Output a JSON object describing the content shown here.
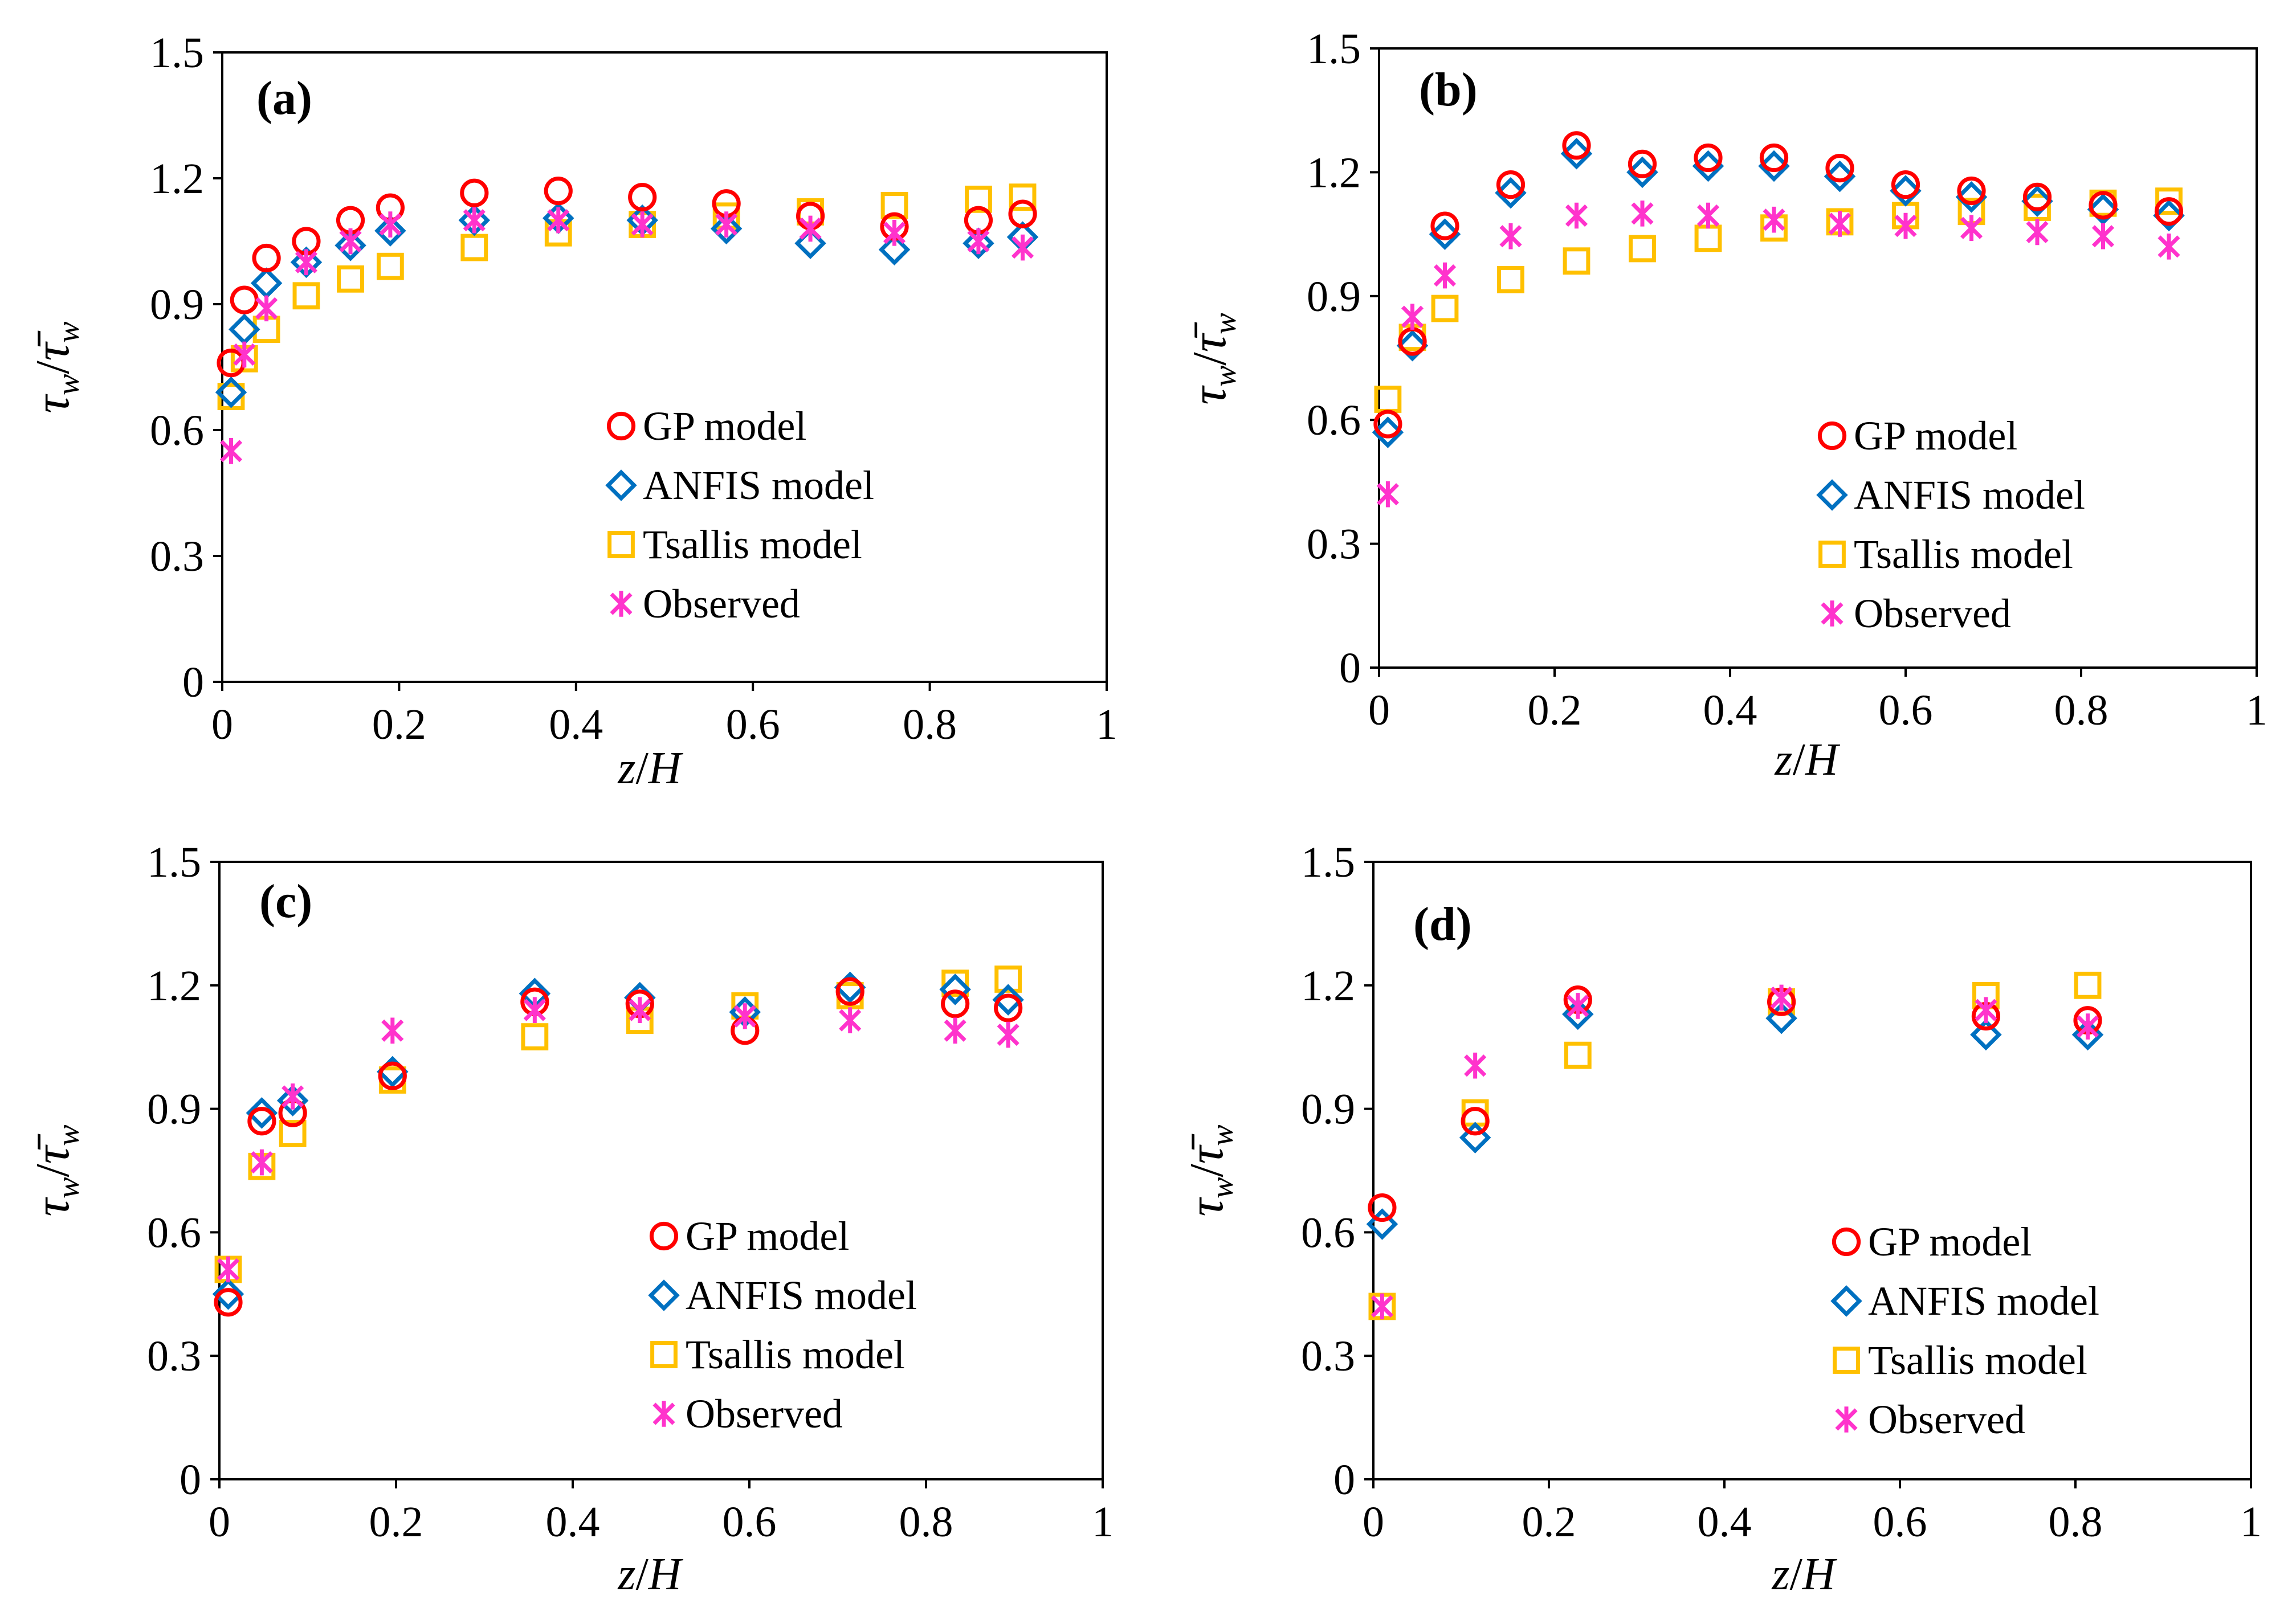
{
  "colors": {
    "gp": "#ff0000",
    "anfis": "#0070c0",
    "tsallis": "#ffc000",
    "observed": "#ff33cc"
  },
  "axis_titles": {
    "x": {
      "z": "z",
      "slash": "/",
      "h": "H"
    },
    "y": {
      "tau": "τ",
      "sub": "w",
      "slash": "/",
      "taubar": "τ̄",
      "sub2": "w"
    }
  },
  "chart_data": [
    {
      "panel": "(a)",
      "type": "scatter",
      "xlim": [
        0,
        1
      ],
      "ylim": [
        0,
        1.5
      ],
      "xticks": [
        "0",
        "0.2",
        "0.4",
        "0.6",
        "0.8",
        "1"
      ],
      "yticks": [
        "0",
        "0.3",
        "0.6",
        "0.9",
        "1.2",
        "1.5"
      ],
      "xlabel": "z/H",
      "ylabel": "τw/τ̄w",
      "legend": [
        "GP model",
        "ANFIS model",
        "Tsallis model",
        "Observed"
      ],
      "series": [
        {
          "name": "GP model",
          "marker": "circle",
          "x": [
            0.01,
            0.025,
            0.05,
            0.095,
            0.145,
            0.19,
            0.285,
            0.38,
            0.475,
            0.57,
            0.665,
            0.76,
            0.855,
            0.905
          ],
          "y": [
            0.76,
            0.91,
            1.01,
            1.05,
            1.1,
            1.13,
            1.165,
            1.17,
            1.155,
            1.14,
            1.11,
            1.085,
            1.1,
            1.115
          ]
        },
        {
          "name": "ANFIS model",
          "marker": "diamond",
          "x": [
            0.01,
            0.025,
            0.05,
            0.095,
            0.145,
            0.19,
            0.285,
            0.38,
            0.475,
            0.57,
            0.665,
            0.76,
            0.855,
            0.905
          ],
          "y": [
            0.69,
            0.84,
            0.95,
            1.0,
            1.04,
            1.075,
            1.1,
            1.105,
            1.1,
            1.08,
            1.045,
            1.03,
            1.045,
            1.06
          ]
        },
        {
          "name": "Tsallis model",
          "marker": "square",
          "x": [
            0.01,
            0.025,
            0.05,
            0.095,
            0.145,
            0.19,
            0.285,
            0.38,
            0.475,
            0.57,
            0.665,
            0.76,
            0.855,
            0.905
          ],
          "y": [
            0.68,
            0.77,
            0.84,
            0.92,
            0.96,
            0.99,
            1.035,
            1.07,
            1.09,
            1.11,
            1.12,
            1.135,
            1.15,
            1.155
          ]
        },
        {
          "name": "Observed",
          "marker": "asterisk",
          "x": [
            0.01,
            0.025,
            0.05,
            0.095,
            0.145,
            0.19,
            0.285,
            0.38,
            0.475,
            0.57,
            0.665,
            0.76,
            0.855,
            0.905
          ],
          "y": [
            0.55,
            0.78,
            0.89,
            1.0,
            1.05,
            1.09,
            1.1,
            1.1,
            1.09,
            1.09,
            1.08,
            1.07,
            1.05,
            1.035
          ]
        }
      ]
    },
    {
      "panel": "(b)",
      "type": "scatter",
      "xlim": [
        0,
        1
      ],
      "ylim": [
        0,
        1.5
      ],
      "xticks": [
        "0",
        "0.2",
        "0.4",
        "0.6",
        "0.8",
        "1"
      ],
      "yticks": [
        "0",
        "0.3",
        "0.6",
        "0.9",
        "1.2",
        "1.5"
      ],
      "xlabel": "z/H",
      "ylabel": "τw/τ̄w",
      "legend": [
        "GP model",
        "ANFIS model",
        "Tsallis model",
        "Observed"
      ],
      "series": [
        {
          "name": "GP model",
          "marker": "circle",
          "x": [
            0.01,
            0.038,
            0.075,
            0.15,
            0.225,
            0.3,
            0.375,
            0.45,
            0.525,
            0.6,
            0.675,
            0.75,
            0.825,
            0.9
          ],
          "y": [
            0.59,
            0.79,
            1.07,
            1.17,
            1.265,
            1.22,
            1.235,
            1.235,
            1.21,
            1.17,
            1.155,
            1.14,
            1.12,
            1.105
          ]
        },
        {
          "name": "ANFIS model",
          "marker": "diamond",
          "x": [
            0.01,
            0.038,
            0.075,
            0.15,
            0.225,
            0.3,
            0.375,
            0.45,
            0.525,
            0.6,
            0.675,
            0.75,
            0.825,
            0.9
          ],
          "y": [
            0.57,
            0.78,
            1.05,
            1.15,
            1.245,
            1.2,
            1.215,
            1.215,
            1.19,
            1.155,
            1.14,
            1.13,
            1.11,
            1.095
          ]
        },
        {
          "name": "Tsallis model",
          "marker": "square",
          "x": [
            0.01,
            0.038,
            0.075,
            0.15,
            0.225,
            0.3,
            0.375,
            0.45,
            0.525,
            0.6,
            0.675,
            0.75,
            0.825,
            0.9
          ],
          "y": [
            0.65,
            0.8,
            0.87,
            0.94,
            0.985,
            1.015,
            1.04,
            1.065,
            1.08,
            1.095,
            1.105,
            1.115,
            1.125,
            1.13
          ]
        },
        {
          "name": "Observed",
          "marker": "asterisk",
          "x": [
            0.01,
            0.038,
            0.075,
            0.15,
            0.225,
            0.3,
            0.375,
            0.45,
            0.525,
            0.6,
            0.675,
            0.75,
            0.825,
            0.9
          ],
          "y": [
            0.42,
            0.85,
            0.95,
            1.045,
            1.095,
            1.1,
            1.095,
            1.085,
            1.075,
            1.07,
            1.065,
            1.055,
            1.045,
            1.02
          ]
        }
      ]
    },
    {
      "panel": "(c)",
      "type": "scatter",
      "xlim": [
        0,
        1
      ],
      "ylim": [
        0,
        1.5
      ],
      "xticks": [
        "0",
        "0.2",
        "0.4",
        "0.6",
        "0.8",
        "1"
      ],
      "yticks": [
        "0",
        "0.3",
        "0.6",
        "0.9",
        "1.2",
        "1.5"
      ],
      "xlabel": "z/H",
      "ylabel": "τw/τ̄w",
      "legend": [
        "GP model",
        "ANFIS model",
        "Tsallis model",
        "Observed"
      ],
      "series": [
        {
          "name": "GP model",
          "marker": "circle",
          "x": [
            0.01,
            0.048,
            0.083,
            0.196,
            0.357,
            0.476,
            0.595,
            0.714,
            0.833,
            0.893
          ],
          "y": [
            0.43,
            0.87,
            0.89,
            0.98,
            1.16,
            1.155,
            1.09,
            1.185,
            1.155,
            1.145
          ]
        },
        {
          "name": "ANFIS model",
          "marker": "diamond",
          "x": [
            0.01,
            0.048,
            0.083,
            0.196,
            0.357,
            0.476,
            0.595,
            0.714,
            0.833,
            0.893
          ],
          "y": [
            0.45,
            0.89,
            0.92,
            0.99,
            1.18,
            1.17,
            1.135,
            1.195,
            1.19,
            1.165
          ]
        },
        {
          "name": "Tsallis model",
          "marker": "square",
          "x": [
            0.01,
            0.048,
            0.083,
            0.196,
            0.357,
            0.476,
            0.595,
            0.714,
            0.833,
            0.893
          ],
          "y": [
            0.51,
            0.76,
            0.84,
            0.97,
            1.075,
            1.115,
            1.15,
            1.175,
            1.205,
            1.215
          ]
        },
        {
          "name": "Observed",
          "marker": "asterisk",
          "x": [
            0.01,
            0.048,
            0.083,
            0.196,
            0.357,
            0.476,
            0.595,
            0.714,
            0.833,
            0.893
          ],
          "y": [
            0.51,
            0.77,
            0.93,
            1.09,
            1.14,
            1.14,
            1.125,
            1.115,
            1.09,
            1.08
          ]
        }
      ]
    },
    {
      "panel": "(d)",
      "type": "scatter",
      "xlim": [
        0,
        1
      ],
      "ylim": [
        0,
        1.5
      ],
      "xticks": [
        "0",
        "0.2",
        "0.4",
        "0.6",
        "0.8",
        "1"
      ],
      "yticks": [
        "0",
        "0.3",
        "0.6",
        "0.9",
        "1.2",
        "1.5"
      ],
      "xlabel": "z/H",
      "ylabel": "τw/τ̄w",
      "legend": [
        "GP model",
        "ANFIS model",
        "Tsallis model",
        "Observed"
      ],
      "series": [
        {
          "name": "GP model",
          "marker": "circle",
          "x": [
            0.01,
            0.116,
            0.233,
            0.465,
            0.698,
            0.814
          ],
          "y": [
            0.66,
            0.87,
            1.165,
            1.16,
            1.125,
            1.115
          ]
        },
        {
          "name": "ANFIS model",
          "marker": "diamond",
          "x": [
            0.01,
            0.116,
            0.233,
            0.465,
            0.698,
            0.814
          ],
          "y": [
            0.62,
            0.83,
            1.13,
            1.12,
            1.08,
            1.08
          ]
        },
        {
          "name": "Tsallis model",
          "marker": "square",
          "x": [
            0.01,
            0.116,
            0.233,
            0.465,
            0.698,
            0.814
          ],
          "y": [
            0.42,
            0.89,
            1.03,
            1.16,
            1.175,
            1.2
          ]
        },
        {
          "name": "Observed",
          "marker": "asterisk",
          "x": [
            0.01,
            0.116,
            0.233,
            0.465,
            0.698,
            0.814
          ],
          "y": [
            0.42,
            1.005,
            1.15,
            1.17,
            1.14,
            1.1
          ]
        }
      ]
    }
  ]
}
